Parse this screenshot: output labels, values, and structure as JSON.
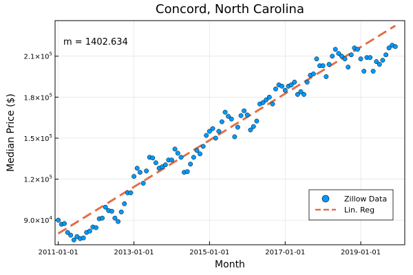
{
  "chart_data": {
    "type": "scatter",
    "title": "Concord, North Carolina",
    "xlabel": "Month",
    "ylabel": "Median Price ($)",
    "annotation": "m = 1402.634",
    "grid": true,
    "legend_position": "bottom-right",
    "colors": {
      "points": "#009AFA",
      "regression": "#E26F46"
    },
    "x_ticks": [
      "2011-01-01",
      "2013-01-01",
      "2015-01-01",
      "2017-01-01",
      "2019-01-01"
    ],
    "y_ticks": [
      {
        "value": 90000,
        "mantissa": "9.0×10",
        "exp": "4"
      },
      {
        "value": 120000,
        "mantissa": "1.2×10",
        "exp": "5"
      },
      {
        "value": 150000,
        "mantissa": "1.5×10",
        "exp": "5"
      },
      {
        "value": 180000,
        "mantissa": "1.8×10",
        "exp": "5"
      },
      {
        "value": 210000,
        "mantissa": "2.1×10",
        "exp": "5"
      }
    ],
    "xlim": [
      "2010-12-01",
      "2020-03-01"
    ],
    "ylim": [
      72000,
      236000
    ],
    "series": [
      {
        "name": "Zillow Data",
        "kind": "scatter",
        "x": [
          "2011-01-01",
          "2011-02-01",
          "2011-03-01",
          "2011-04-01",
          "2011-05-01",
          "2011-06-01",
          "2011-07-01",
          "2011-08-01",
          "2011-09-01",
          "2011-10-01",
          "2011-11-01",
          "2011-12-01",
          "2012-01-01",
          "2012-02-01",
          "2012-03-01",
          "2012-04-01",
          "2012-05-01",
          "2012-06-01",
          "2012-07-01",
          "2012-08-01",
          "2012-09-01",
          "2012-10-01",
          "2012-11-01",
          "2012-12-01",
          "2013-01-01",
          "2013-02-01",
          "2013-03-01",
          "2013-04-01",
          "2013-05-01",
          "2013-06-01",
          "2013-07-01",
          "2013-08-01",
          "2013-09-01",
          "2013-10-01",
          "2013-11-01",
          "2013-12-01",
          "2014-01-01",
          "2014-02-01",
          "2014-03-01",
          "2014-04-01",
          "2014-05-01",
          "2014-06-01",
          "2014-07-01",
          "2014-08-01",
          "2014-09-01",
          "2014-10-01",
          "2014-11-01",
          "2014-12-01",
          "2015-01-01",
          "2015-02-01",
          "2015-03-01",
          "2015-04-01",
          "2015-05-01",
          "2015-06-01",
          "2015-07-01",
          "2015-08-01",
          "2015-09-01",
          "2015-10-01",
          "2015-11-01",
          "2015-12-01",
          "2016-01-01",
          "2016-02-01",
          "2016-03-01",
          "2016-04-01",
          "2016-05-01",
          "2016-06-01",
          "2016-07-01",
          "2016-08-01",
          "2016-09-01",
          "2016-10-01",
          "2016-11-01",
          "2016-12-01",
          "2017-01-01",
          "2017-02-01",
          "2017-03-01",
          "2017-04-01",
          "2017-05-01",
          "2017-06-01",
          "2017-07-01",
          "2017-08-01",
          "2017-09-01",
          "2017-10-01",
          "2017-11-01",
          "2017-12-01",
          "2018-01-01",
          "2018-02-01",
          "2018-03-01",
          "2018-04-01",
          "2018-05-01",
          "2018-06-01",
          "2018-07-01",
          "2018-08-01",
          "2018-09-01",
          "2018-10-01",
          "2018-11-01",
          "2018-12-01",
          "2019-01-01",
          "2019-02-01",
          "2019-03-01",
          "2019-04-01",
          "2019-05-01",
          "2019-06-01",
          "2019-07-01",
          "2019-08-01",
          "2019-09-01",
          "2019-10-01",
          "2019-11-01",
          "2019-12-01"
        ],
        "y": [
          90000,
          87000,
          87500,
          81000,
          79000,
          75500,
          78000,
          76500,
          77000,
          81000,
          82000,
          85000,
          84500,
          91000,
          91500,
          99500,
          97000,
          96500,
          91500,
          89000,
          96000,
          102000,
          110000,
          110000,
          122000,
          128000,
          125000,
          117000,
          126000,
          136000,
          135500,
          132000,
          128000,
          129000,
          130500,
          134000,
          134000,
          142000,
          139000,
          136000,
          125000,
          125500,
          131000,
          136000,
          141000,
          138500,
          144000,
          152000,
          155000,
          157000,
          150000,
          155000,
          162000,
          169000,
          166000,
          164000,
          151000,
          158000,
          166500,
          170000,
          167000,
          156000,
          158500,
          162500,
          175000,
          176000,
          178000,
          180000,
          175000,
          186000,
          189000,
          188000,
          185000,
          188000,
          189000,
          191000,
          182000,
          184000,
          182000,
          191000,
          196000,
          197000,
          208000,
          203000,
          203000,
          195000,
          204000,
          210000,
          215000,
          212000,
          210000,
          208000,
          202000,
          211000,
          216000,
          215000,
          208000,
          199000,
          209000,
          209000,
          199000,
          206000,
          204000,
          207000,
          211000,
          216000,
          218000,
          217000
        ]
      },
      {
        "name": "Lin. Reg",
        "kind": "line",
        "slope_per_month": 1402.634,
        "x": [
          "2011-01-01",
          "2019-12-01"
        ],
        "y": [
          80200,
          232300
        ]
      }
    ]
  }
}
